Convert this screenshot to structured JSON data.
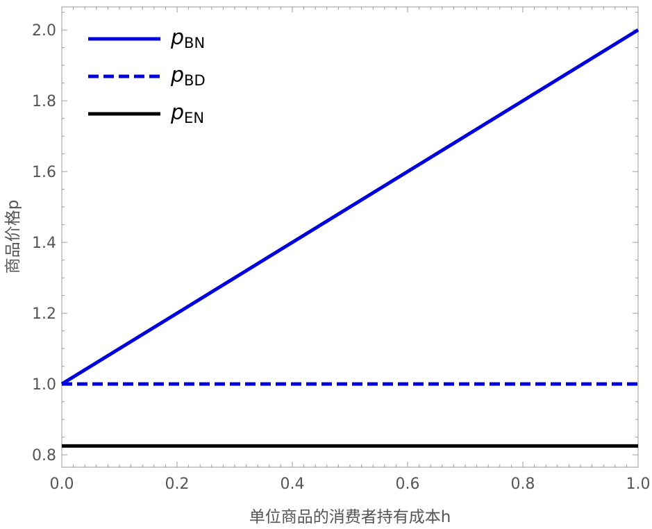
{
  "chart_data": {
    "type": "line",
    "title": "",
    "xlabel": "单位商品的消费者持有成本h",
    "ylabel": "商品价格p",
    "xlim": [
      0.0,
      1.0
    ],
    "ylim": [
      0.765,
      2.065
    ],
    "xticks": [
      0.0,
      0.2,
      0.4,
      0.6,
      0.8,
      1.0
    ],
    "xtick_labels": [
      "0.0",
      "0.2",
      "0.4",
      "0.6",
      "0.8",
      "1.0"
    ],
    "yticks": [
      0.8,
      1.0,
      1.2,
      1.4,
      1.6,
      1.8,
      2.0
    ],
    "ytick_labels": [
      "0.8",
      "1.0",
      "1.2",
      "1.4",
      "1.6",
      "1.8",
      "2.0"
    ],
    "grid": false,
    "legend_position": "top-left",
    "series": [
      {
        "name": "p",
        "subscript": "BN",
        "color": "#0000dd",
        "style": "solid",
        "x": [
          0.0,
          1.0
        ],
        "y": [
          1.0,
          2.0
        ]
      },
      {
        "name": "p",
        "subscript": "BD",
        "color": "#0000dd",
        "style": "dashed",
        "x": [
          0.0,
          1.0
        ],
        "y": [
          1.0,
          1.0
        ]
      },
      {
        "name": "p",
        "subscript": "EN",
        "color": "#000000",
        "style": "solid",
        "x": [
          0.0,
          1.0
        ],
        "y": [
          0.825,
          0.825
        ]
      }
    ]
  }
}
